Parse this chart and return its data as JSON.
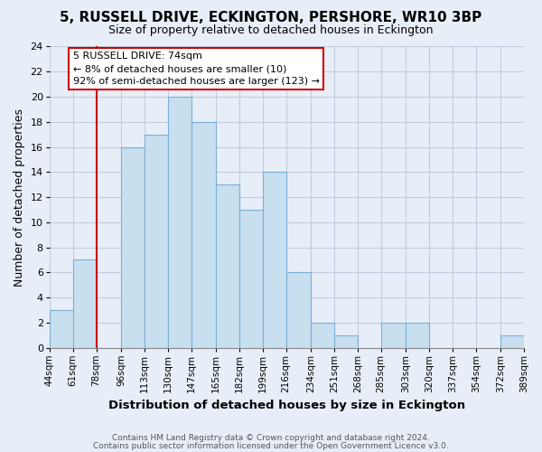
{
  "title": "5, RUSSELL DRIVE, ECKINGTON, PERSHORE, WR10 3BP",
  "subtitle": "Size of property relative to detached houses in Eckington",
  "xlabel": "Distribution of detached houses by size in Eckington",
  "ylabel": "Number of detached properties",
  "bin_edges": [
    44,
    61,
    78,
    96,
    113,
    130,
    147,
    165,
    182,
    199,
    216,
    234,
    251,
    268,
    285,
    303,
    320,
    337,
    354,
    372,
    389
  ],
  "bar_heights": [
    3,
    7,
    0,
    16,
    17,
    20,
    18,
    13,
    11,
    14,
    6,
    2,
    1,
    0,
    2,
    2,
    0,
    0,
    0,
    1
  ],
  "bar_color": "#c8dff0",
  "bar_edgecolor": "#7bafd4",
  "ylim": [
    0,
    24
  ],
  "yticks": [
    0,
    2,
    4,
    6,
    8,
    10,
    12,
    14,
    16,
    18,
    20,
    22,
    24
  ],
  "x_tick_labels": [
    "44sqm",
    "61sqm",
    "78sqm",
    "96sqm",
    "113sqm",
    "130sqm",
    "147sqm",
    "165sqm",
    "182sqm",
    "199sqm",
    "216sqm",
    "234sqm",
    "251sqm",
    "268sqm",
    "285sqm",
    "303sqm",
    "320sqm",
    "337sqm",
    "354sqm",
    "372sqm",
    "389sqm"
  ],
  "vline_x": 78,
  "vline_color": "#cc0000",
  "annotation_title": "5 RUSSELL DRIVE: 74sqm",
  "annotation_line1": "← 8% of detached houses are smaller (10)",
  "annotation_line2": "92% of semi-detached houses are larger (123) →",
  "annotation_box_edgecolor": "#cc0000",
  "annotation_box_facecolor": "#ffffff",
  "footer1": "Contains HM Land Registry data © Crown copyright and database right 2024.",
  "footer2": "Contains public sector information licensed under the Open Government Licence v3.0.",
  "background_color": "#e8eef8",
  "grid_color": "#c0ccdd"
}
